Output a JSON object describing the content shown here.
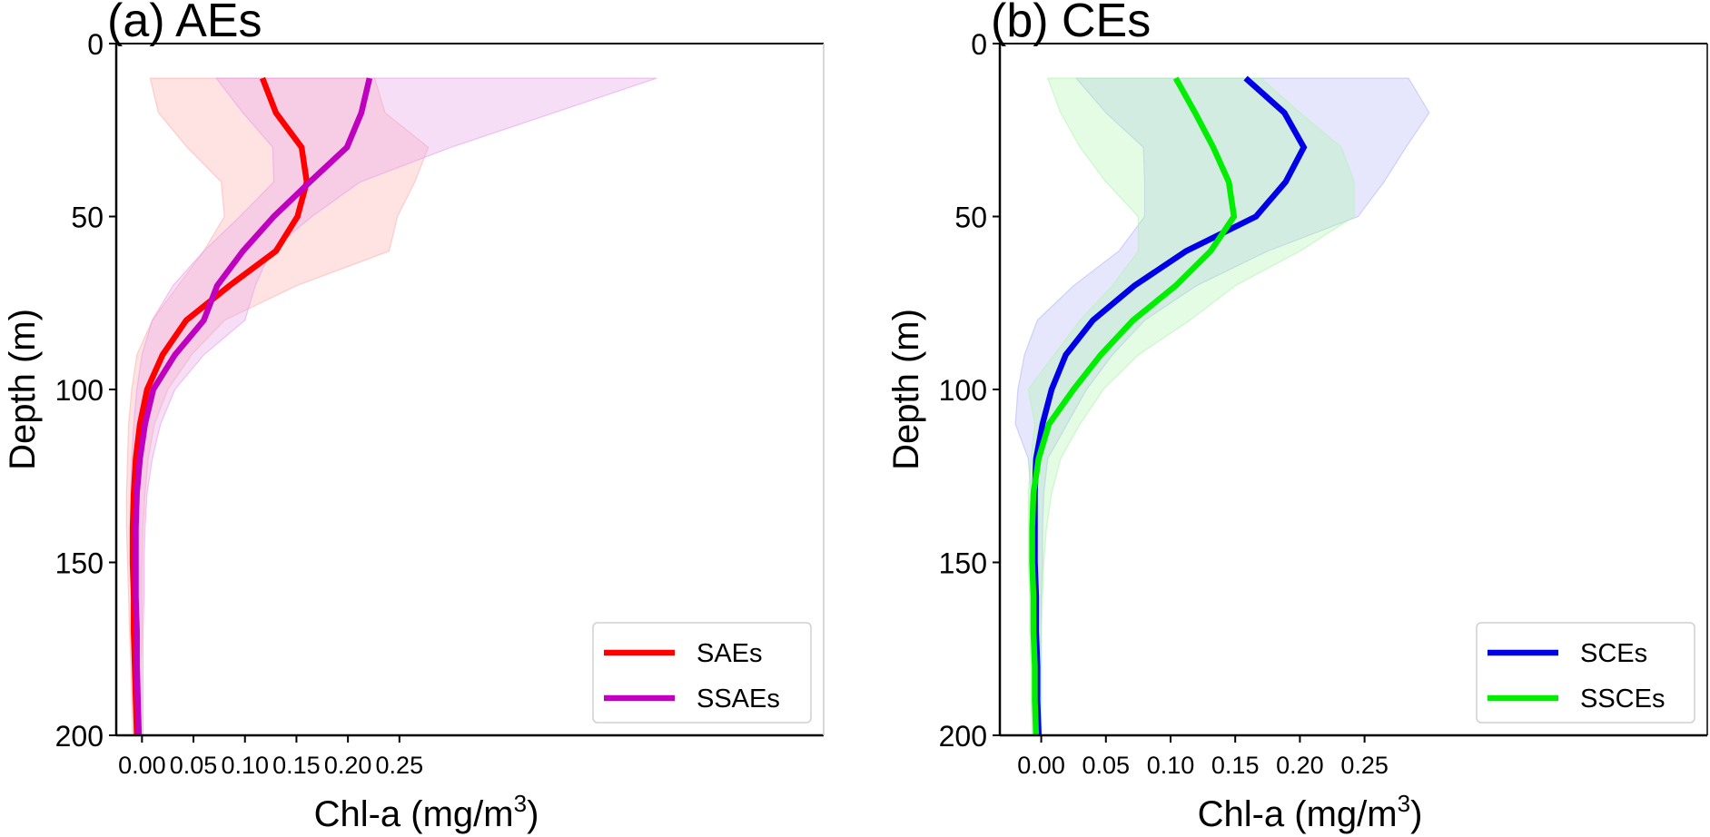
{
  "chart_data": [
    {
      "type": "line",
      "title": "(a) AEs",
      "xlabel": "Chl-a (mg/m",
      "xlabel_sup": "3",
      "xlabel_end": ")",
      "ylabel": "Depth (m)",
      "xlim": [
        -0.025,
        0.662
      ],
      "ylim": [
        200,
        0
      ],
      "xticks": [
        0.0,
        0.05,
        0.1,
        0.15,
        0.2,
        0.25
      ],
      "xtick_labels": [
        "0.00",
        "0.05",
        "0.10",
        "0.15",
        "0.20",
        "0.25"
      ],
      "yticks": [
        0,
        50,
        100,
        150,
        200
      ],
      "ytick_labels": [
        "0",
        "50",
        "100",
        "150",
        "200"
      ],
      "legend_position": "lower-right",
      "depth": [
        10,
        20,
        30,
        40,
        50,
        60,
        70,
        80,
        90,
        100,
        110,
        120,
        130,
        140,
        150,
        160,
        170,
        180,
        190,
        200
      ],
      "series": [
        {
          "name": "SAEs",
          "color": "#ff0000",
          "fill_color": "#ffb0b0",
          "mean": [
            0.117,
            0.13,
            0.155,
            0.16,
            0.151,
            0.13,
            0.085,
            0.043,
            0.02,
            0.005,
            -0.002,
            -0.006,
            -0.008,
            -0.009,
            -0.009,
            -0.008,
            -0.008,
            -0.007,
            -0.006,
            -0.005
          ],
          "lower": [
            0.008,
            0.016,
            0.044,
            0.077,
            0.08,
            0.06,
            0.035,
            0.01,
            -0.005,
            -0.01,
            -0.013,
            -0.014,
            -0.015,
            -0.015,
            -0.014,
            -0.013,
            -0.012,
            -0.011,
            -0.01,
            -0.009
          ],
          "upper": [
            0.226,
            0.236,
            0.278,
            0.265,
            0.248,
            0.24,
            0.15,
            0.08,
            0.048,
            0.025,
            0.012,
            0.006,
            0.003,
            0.001,
            0.0,
            0.0,
            0.0,
            -0.001,
            -0.001,
            -0.001
          ]
        },
        {
          "name": "SSAEs",
          "color": "#bf00bf",
          "fill_color": "#e8a0e8",
          "mean": [
            0.221,
            0.213,
            0.199,
            0.163,
            0.128,
            0.098,
            0.073,
            0.06,
            0.032,
            0.011,
            0.003,
            -0.002,
            -0.005,
            -0.006,
            -0.006,
            -0.006,
            -0.005,
            -0.005,
            -0.004,
            -0.003
          ],
          "lower": [
            0.072,
            0.098,
            0.127,
            0.128,
            0.095,
            0.06,
            0.03,
            0.01,
            0.0,
            -0.005,
            -0.008,
            -0.01,
            -0.011,
            -0.011,
            -0.01,
            -0.01,
            -0.009,
            -0.008,
            -0.008,
            -0.007
          ],
          "upper": [
            0.5,
            0.4,
            0.3,
            0.212,
            0.165,
            0.125,
            0.11,
            0.1,
            0.06,
            0.032,
            0.018,
            0.01,
            0.005,
            0.003,
            0.002,
            0.002,
            0.001,
            0.001,
            0.001,
            0.001
          ]
        }
      ]
    },
    {
      "type": "line",
      "title": "(b) CEs",
      "xlabel": "Chl-a (mg/m",
      "xlabel_sup": "3",
      "xlabel_end": ")",
      "ylabel": "Depth (m)",
      "xlim": [
        -0.032,
        0.515
      ],
      "ylim": [
        200,
        0
      ],
      "xticks": [
        0.0,
        0.05,
        0.1,
        0.15,
        0.2,
        0.25
      ],
      "xtick_labels": [
        "0.00",
        "0.05",
        "0.10",
        "0.15",
        "0.20",
        "0.25"
      ],
      "yticks": [
        0,
        50,
        100,
        150,
        200
      ],
      "ytick_labels": [
        "0",
        "50",
        "100",
        "150",
        "200"
      ],
      "legend_position": "lower-right",
      "depth": [
        10,
        20,
        30,
        40,
        50,
        60,
        70,
        80,
        90,
        100,
        110,
        120,
        130,
        140,
        150,
        160,
        170,
        180,
        190,
        200
      ],
      "series": [
        {
          "name": "SCEs",
          "color": "#0000e6",
          "fill_color": "#b8b8f8",
          "mean": [
            0.158,
            0.188,
            0.203,
            0.189,
            0.166,
            0.112,
            0.072,
            0.04,
            0.019,
            0.008,
            0.001,
            -0.004,
            -0.005,
            -0.005,
            -0.005,
            -0.004,
            -0.004,
            -0.003,
            -0.003,
            -0.002
          ],
          "lower": [
            0.027,
            0.05,
            0.079,
            0.08,
            0.08,
            0.06,
            0.025,
            -0.003,
            -0.013,
            -0.018,
            -0.02,
            -0.01,
            -0.008,
            -0.008,
            -0.008,
            -0.007,
            -0.006,
            -0.006,
            -0.005,
            -0.004
          ],
          "upper": [
            0.284,
            0.3,
            0.282,
            0.265,
            0.245,
            0.175,
            0.12,
            0.08,
            0.055,
            0.035,
            0.02,
            0.005,
            0.002,
            0.001,
            0.001,
            0.0,
            0.0,
            0.0,
            0.0,
            0.0
          ]
        },
        {
          "name": "SSCEs",
          "color": "#00ee00",
          "fill_color": "#b0f5b0",
          "mean": [
            0.104,
            0.119,
            0.133,
            0.145,
            0.149,
            0.131,
            0.104,
            0.071,
            0.046,
            0.025,
            0.006,
            -0.002,
            -0.006,
            -0.007,
            -0.007,
            -0.006,
            -0.006,
            -0.005,
            -0.005,
            -0.004
          ],
          "lower": [
            0.005,
            0.015,
            0.03,
            0.05,
            0.075,
            0.075,
            0.055,
            0.03,
            0.01,
            -0.01,
            -0.005,
            -0.008,
            -0.01,
            -0.01,
            -0.01,
            -0.009,
            -0.009,
            -0.008,
            -0.008,
            -0.007
          ],
          "upper": [
            0.17,
            0.2,
            0.232,
            0.242,
            0.242,
            0.2,
            0.15,
            0.115,
            0.075,
            0.048,
            0.03,
            0.015,
            0.008,
            0.004,
            0.002,
            0.001,
            0.0,
            0.0,
            0.0,
            0.0
          ]
        }
      ]
    }
  ]
}
